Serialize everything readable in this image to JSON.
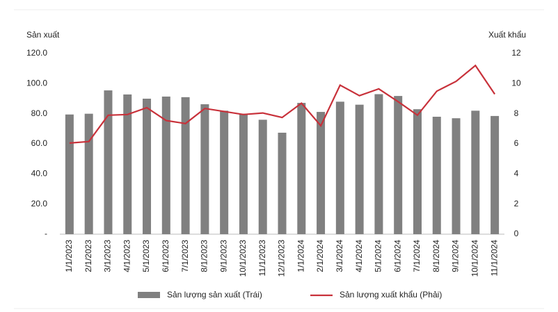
{
  "chart_data": {
    "type": "bar-line",
    "y_label": "Sản xuất",
    "y2_label": "Xuất khẩu",
    "categories": [
      "1/1/2023",
      "2/1/2023",
      "3/1/2023",
      "4/1/2023",
      "5/1/2023",
      "6/1/2023",
      "7/1/2023",
      "8/1/2023",
      "9/1/2023",
      "10/1/2023",
      "11/1/2023",
      "12/1/2023",
      "1/1/2024",
      "2/1/2024",
      "3/1/2024",
      "4/1/2024",
      "5/1/2024",
      "6/1/2024",
      "7/1/2024",
      "8/1/2024",
      "9/1/2024",
      "10/1/2024",
      "11/1/2024"
    ],
    "series": [
      {
        "name": "Sản lượng sản xuất (Trái)",
        "type": "bar",
        "color": "#808080",
        "axis": "y",
        "values": [
          79.5,
          80,
          95.5,
          92.8,
          90,
          91.4,
          91,
          86.3,
          82,
          80,
          76,
          67.4,
          87.2,
          81.2,
          88,
          86,
          93,
          91.8,
          83,
          78,
          77,
          82,
          78.5
        ]
      },
      {
        "name": "Sản lượng xuất khẩu (Phải)",
        "type": "line",
        "color": "#c8313a",
        "axis": "y2",
        "values": [
          6.05,
          6.15,
          7.9,
          7.95,
          8.4,
          7.55,
          7.35,
          8.35,
          8.15,
          7.95,
          8.05,
          7.75,
          8.7,
          7.2,
          9.9,
          9.2,
          9.65,
          8.8,
          7.9,
          9.5,
          10.15,
          11.2,
          9.3
        ]
      }
    ],
    "ylim": [
      0,
      120
    ],
    "yticks": [
      {
        "value": 0,
        "label": "-"
      },
      {
        "value": 20,
        "label": "20.0"
      },
      {
        "value": 40,
        "label": "40.0"
      },
      {
        "value": 60,
        "label": "60.0"
      },
      {
        "value": 80,
        "label": "80.0"
      },
      {
        "value": 100,
        "label": "100.0"
      },
      {
        "value": 120,
        "label": "120.0"
      }
    ],
    "y2lim": [
      0,
      12
    ],
    "y2ticks": [
      0,
      2,
      4,
      6,
      8,
      10,
      12
    ],
    "grid": false
  }
}
